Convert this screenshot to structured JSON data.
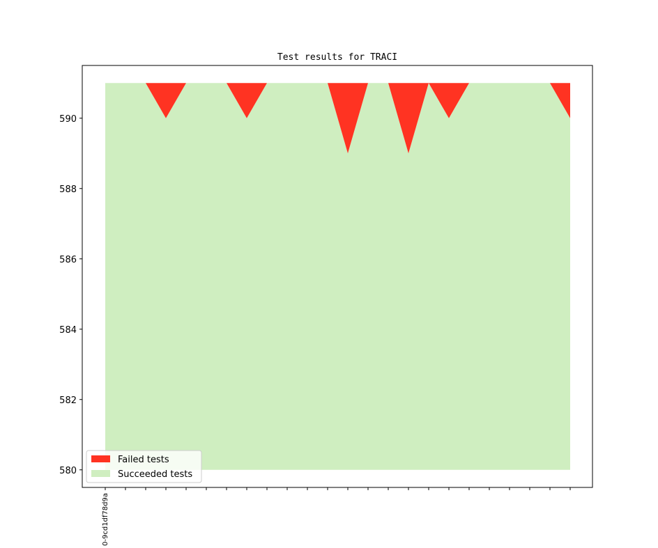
{
  "chart_data": {
    "type": "area",
    "title": "Test results for TRACI",
    "xlabel": "",
    "ylabel": "",
    "ylim": [
      579.5,
      591.5
    ],
    "yticks": [
      580,
      582,
      584,
      586,
      588,
      590
    ],
    "x": [
      0,
      1,
      2,
      3,
      4,
      5,
      6,
      7,
      8,
      9,
      10,
      11,
      12,
      13,
      14,
      15,
      16,
      17,
      18,
      19,
      20,
      21,
      22,
      23
    ],
    "xtick_labels": [
      "0-9cd1df78d9a",
      "",
      "",
      "",
      "",
      "",
      "",
      "",
      "",
      "",
      "",
      "",
      "",
      "",
      "",
      "",
      "",
      "",
      "",
      "",
      "",
      "",
      "",
      ""
    ],
    "total_tests": 591,
    "baseline": 580,
    "series": [
      {
        "name": "Failed tests",
        "color": "#ff3322",
        "values": [
          0,
          0,
          0,
          1,
          0,
          0,
          0,
          1,
          0,
          0,
          0,
          0,
          2,
          0,
          0,
          2,
          0,
          1,
          0,
          0,
          0,
          0,
          0,
          1
        ]
      },
      {
        "name": "Succeeded tests",
        "color": "#cfeec0",
        "values": [
          591,
          591,
          591,
          590,
          591,
          591,
          591,
          590,
          591,
          591,
          591,
          591,
          589,
          591,
          591,
          589,
          591,
          590,
          591,
          591,
          591,
          591,
          591,
          590
        ]
      }
    ],
    "legend": {
      "position": "lower-left",
      "entries": [
        "Failed tests",
        "Succeeded tests"
      ]
    },
    "grid": false
  }
}
